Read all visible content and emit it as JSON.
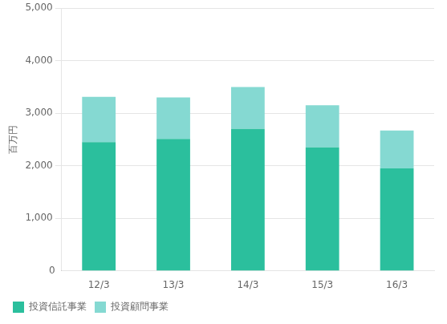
{
  "chart_data": {
    "type": "bar",
    "stacked": true,
    "categories": [
      "12/3",
      "13/3",
      "14/3",
      "15/3",
      "16/3"
    ],
    "series": [
      {
        "name": "投資信託事業",
        "color": "#2bbf9d",
        "values": [
          2450,
          2510,
          2700,
          2350,
          1950
        ]
      },
      {
        "name": "投資顧問事業",
        "color": "#85d9d2",
        "values": [
          860,
          790,
          800,
          800,
          720
        ]
      }
    ],
    "ylim": [
      0,
      5000
    ],
    "yticks": [
      {
        "value": 1000,
        "label": "1,000"
      },
      {
        "value": 2000,
        "label": "2,000"
      },
      {
        "value": 3000,
        "label": "3,000"
      },
      {
        "value": 4000,
        "label": "4,000"
      },
      {
        "value": 5000,
        "label": "5,000"
      }
    ],
    "ylabel": "百万円",
    "annotations": [
      "0"
    ],
    "grid": true,
    "legend": "bottom left"
  }
}
